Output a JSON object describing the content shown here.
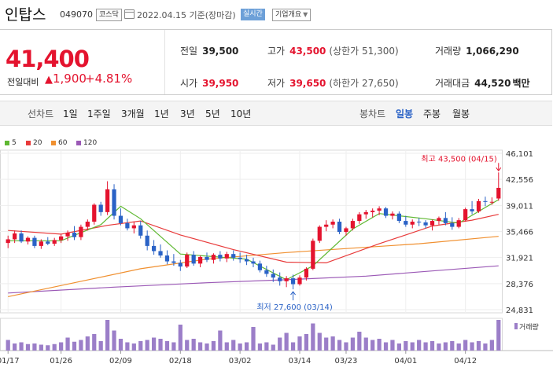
{
  "header": {
    "name": "인탑스",
    "code": "049070",
    "market": "코스닥",
    "date_basis": "2022.04.15 기준(장마감)",
    "realtime": "실시간",
    "profile": "기업개요"
  },
  "summary": {
    "price": "41,400",
    "change_label": "전일대비",
    "change_value": "1,900",
    "change_pct": "+4.81%",
    "prev_label": "전일",
    "prev": "39,500",
    "high_label": "고가",
    "high": "43,500",
    "high_sub": "(상한가 51,300)",
    "vol_label": "거래량",
    "vol": "1,066,290",
    "open_label": "시가",
    "open": "39,950",
    "low_label": "저가",
    "low": "39,650",
    "low_sub": "(하한가 27,650)",
    "amt_label": "거래대금",
    "amt": "44,520",
    "amt_unit": "백만"
  },
  "tabs": {
    "line_label": "선차트",
    "periods": [
      "1일",
      "1주일",
      "3개월",
      "1년",
      "3년",
      "5년",
      "10년"
    ],
    "candle_label": "봉차트",
    "candles": [
      "일봉",
      "주봉",
      "월봉"
    ]
  },
  "colors": {
    "up": "#e4132e",
    "down": "#2a62c6",
    "ma5": "#5fb832",
    "ma20": "#e83a3a",
    "ma60": "#f09030",
    "ma120": "#9b59b6",
    "volume": "#9b7ec8"
  },
  "chart_data": {
    "type": "candlestick",
    "legend": [
      "5",
      "20",
      "60",
      "120"
    ],
    "y_ticks": [
      24831,
      28376,
      31921,
      35466,
      39011,
      42556,
      46101
    ],
    "ylim": [
      24831,
      46101
    ],
    "x_ticks": [
      "01/17",
      "01/26",
      "02/09",
      "02/18",
      "03/02",
      "03/14",
      "03/23",
      "04/01",
      "04/12"
    ],
    "high_annotation": "최고 43,500 (04/15)",
    "low_annotation": "최저 27,600 (03/14)",
    "volume_label": "거래량",
    "ohlc": [
      [
        33900,
        34900,
        33200,
        34400
      ],
      [
        34400,
        35600,
        33900,
        35200
      ],
      [
        35200,
        35600,
        33900,
        34100
      ],
      [
        34100,
        34800,
        33700,
        34600
      ],
      [
        34600,
        34900,
        33200,
        33500
      ],
      [
        33500,
        34400,
        33100,
        34100
      ],
      [
        34100,
        34700,
        33600,
        33800
      ],
      [
        33800,
        34600,
        33500,
        34300
      ],
      [
        34300,
        35100,
        33900,
        34800
      ],
      [
        34800,
        35600,
        34200,
        35300
      ],
      [
        35300,
        36200,
        34300,
        34700
      ],
      [
        34700,
        36400,
        34300,
        36100
      ],
      [
        36100,
        37100,
        35600,
        36800
      ],
      [
        36800,
        39300,
        36400,
        39100
      ],
      [
        39100,
        39500,
        37600,
        38100
      ],
      [
        38100,
        42300,
        37700,
        41200
      ],
      [
        41200,
        41900,
        37100,
        37600
      ],
      [
        37600,
        38600,
        36300,
        36600
      ],
      [
        36600,
        37200,
        35600,
        35900
      ],
      [
        35900,
        36800,
        35200,
        36300
      ],
      [
        36300,
        36900,
        34500,
        34900
      ],
      [
        34900,
        35600,
        32900,
        33500
      ],
      [
        33500,
        34300,
        32300,
        32800
      ],
      [
        32800,
        33700,
        31900,
        32200
      ],
      [
        32200,
        32900,
        31000,
        31400
      ],
      [
        31400,
        32400,
        30800,
        31200
      ],
      [
        31200,
        31600,
        30100,
        30700
      ],
      [
        30700,
        32600,
        30500,
        32300
      ],
      [
        32300,
        32800,
        30800,
        31100
      ],
      [
        31100,
        32200,
        30600,
        32000
      ],
      [
        32000,
        32600,
        31300,
        31600
      ],
      [
        31600,
        32500,
        31100,
        32300
      ],
      [
        32300,
        32800,
        31400,
        31800
      ],
      [
        31800,
        32700,
        31300,
        32400
      ],
      [
        32400,
        32900,
        31500,
        31900
      ],
      [
        31900,
        32600,
        31200,
        31700
      ],
      [
        31700,
        32300,
        30900,
        31400
      ],
      [
        31400,
        31900,
        30600,
        31100
      ],
      [
        31100,
        31500,
        29900,
        30200
      ],
      [
        30200,
        30800,
        29300,
        29700
      ],
      [
        29700,
        30300,
        28600,
        29200
      ],
      [
        29200,
        29900,
        28100,
        28700
      ],
      [
        28700,
        29400,
        27900,
        29100
      ],
      [
        29100,
        29600,
        27600,
        28300
      ],
      [
        28300,
        29500,
        28100,
        29200
      ],
      [
        29200,
        30600,
        28800,
        30400
      ],
      [
        30400,
        34500,
        30200,
        34200
      ],
      [
        34200,
        36300,
        33900,
        36100
      ],
      [
        36100,
        37000,
        35500,
        36400
      ],
      [
        36400,
        37100,
        35900,
        36800
      ],
      [
        36800,
        37200,
        35100,
        35400
      ],
      [
        35400,
        36100,
        34900,
        35900
      ],
      [
        35900,
        37200,
        35600,
        36900
      ],
      [
        36900,
        38100,
        36500,
        37800
      ],
      [
        37800,
        38400,
        37200,
        38100
      ],
      [
        38100,
        38600,
        37400,
        38300
      ],
      [
        38300,
        38900,
        37700,
        38600
      ],
      [
        38600,
        38800,
        37300,
        37600
      ],
      [
        37600,
        38200,
        37100,
        37900
      ],
      [
        37900,
        38200,
        36600,
        36900
      ],
      [
        36900,
        37600,
        36100,
        36400
      ],
      [
        36400,
        37100,
        35900,
        36800
      ],
      [
        36800,
        37300,
        36200,
        36700
      ],
      [
        36700,
        37000,
        35900,
        36300
      ],
      [
        36300,
        37100,
        35600,
        36900
      ],
      [
        36900,
        37500,
        36400,
        37300
      ],
      [
        37300,
        38100,
        36300,
        36600
      ],
      [
        36600,
        37400,
        35700,
        36100
      ],
      [
        36100,
        37300,
        35900,
        37000
      ],
      [
        37000,
        38700,
        36800,
        38500
      ],
      [
        38500,
        39600,
        37800,
        38200
      ],
      [
        38200,
        39900,
        38000,
        39600
      ],
      [
        39600,
        40200,
        38900,
        39500
      ],
      [
        39500,
        40100,
        39100,
        39500
      ],
      [
        39950,
        43500,
        39650,
        41400
      ]
    ],
    "ma": {
      "5": [
        [
          0,
          34200
        ],
        [
          8,
          34200
        ],
        [
          14,
          36400
        ],
        [
          17,
          38900
        ],
        [
          20,
          37200
        ],
        [
          26,
          32400
        ],
        [
          36,
          31700
        ],
        [
          42,
          28900
        ],
        [
          46,
          30800
        ],
        [
          52,
          35800
        ],
        [
          56,
          37900
        ],
        [
          63,
          37200
        ],
        [
          68,
          36600
        ],
        [
          74,
          39800
        ]
      ],
      "20": [
        [
          0,
          35600
        ],
        [
          8,
          35100
        ],
        [
          15,
          36300
        ],
        [
          20,
          36900
        ],
        [
          26,
          35000
        ],
        [
          34,
          33000
        ],
        [
          42,
          31300
        ],
        [
          48,
          31200
        ],
        [
          56,
          33800
        ],
        [
          64,
          36200
        ],
        [
          70,
          37000
        ],
        [
          74,
          37800
        ]
      ],
      "60": [
        [
          0,
          26600
        ],
        [
          10,
          28500
        ],
        [
          20,
          30400
        ],
        [
          30,
          31700
        ],
        [
          42,
          32600
        ],
        [
          52,
          33200
        ],
        [
          62,
          33800
        ],
        [
          74,
          34800
        ]
      ],
      "120": [
        [
          0,
          27100
        ],
        [
          16,
          27900
        ],
        [
          30,
          28500
        ],
        [
          42,
          28900
        ],
        [
          54,
          29400
        ],
        [
          64,
          30100
        ],
        [
          74,
          30800
        ]
      ]
    },
    "volume": [
      18,
      12,
      14,
      11,
      12,
      10,
      9,
      11,
      14,
      22,
      15,
      18,
      24,
      28,
      16,
      52,
      34,
      20,
      14,
      12,
      16,
      18,
      22,
      20,
      16,
      14,
      44,
      18,
      20,
      14,
      12,
      16,
      34,
      14,
      18,
      12,
      14,
      40,
      12,
      14,
      10,
      22,
      30,
      14,
      24,
      28,
      46,
      30,
      22,
      24,
      18,
      14,
      22,
      32,
      22,
      18,
      20,
      14,
      18,
      12,
      16,
      14,
      18,
      14,
      16,
      12,
      14,
      16,
      12,
      18,
      14,
      16,
      12,
      18,
      52
    ]
  }
}
